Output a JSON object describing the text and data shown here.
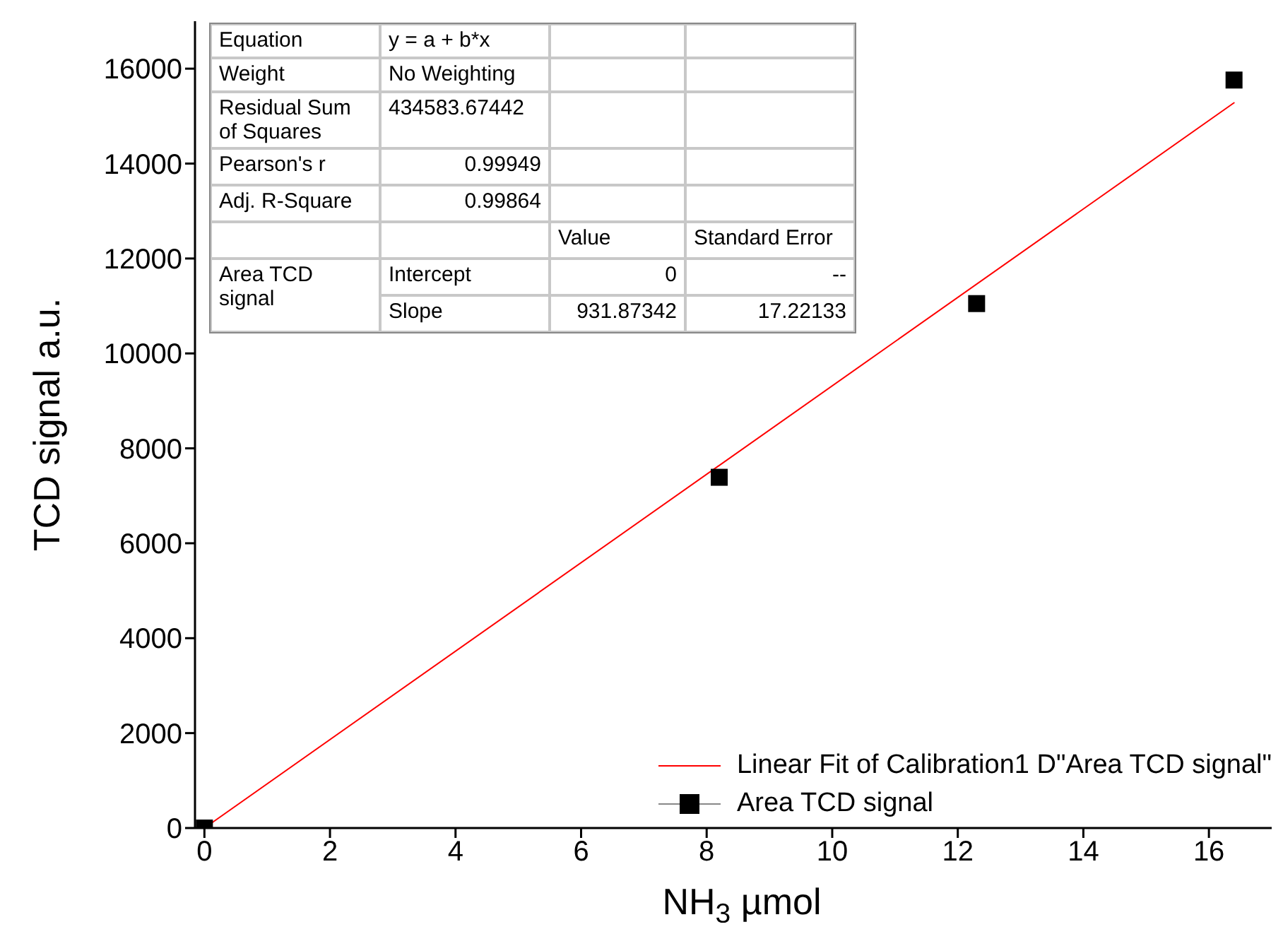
{
  "chart_data": {
    "type": "scatter",
    "xlabel": "NH$_{3}$ µmol",
    "ylabel": "TCD signal a.u.",
    "xlim": [
      -0.15,
      17
    ],
    "xticks": [
      0,
      2,
      4,
      6,
      8,
      10,
      12,
      14,
      16
    ],
    "ylim": [
      0,
      17000
    ],
    "yticks": [
      0,
      2000,
      4000,
      6000,
      8000,
      10000,
      12000,
      14000,
      16000
    ],
    "series": [
      {
        "name": "Linear Fit of Calibration1 D\"Area TCD signal\"",
        "type": "line",
        "marker": "none",
        "color": "#ff0000",
        "x": [
          0,
          16.4
        ],
        "values": [
          0,
          15280
        ]
      },
      {
        "name": "Area TCD signal",
        "color": "#000000",
        "x": [
          0,
          8.2,
          12.3,
          16.4
        ],
        "values": [
          0,
          7390,
          11050,
          15760
        ]
      }
    ],
    "marker": "square",
    "grid": false,
    "legend": "bottom right",
    "annotations": [
      "Equation",
      "y = a + b*x",
      "Weight",
      "No Weighting",
      "Residual Sum of Squares",
      "434583.67442",
      "Pearson's r",
      "0.99949",
      "Adj. R-Square",
      "0.99864",
      "Value",
      "Standard Error",
      "Area TCD signal",
      "Intercept",
      "0",
      "--",
      "Slope",
      "931.87342",
      "17.22133"
    ]
  }
}
